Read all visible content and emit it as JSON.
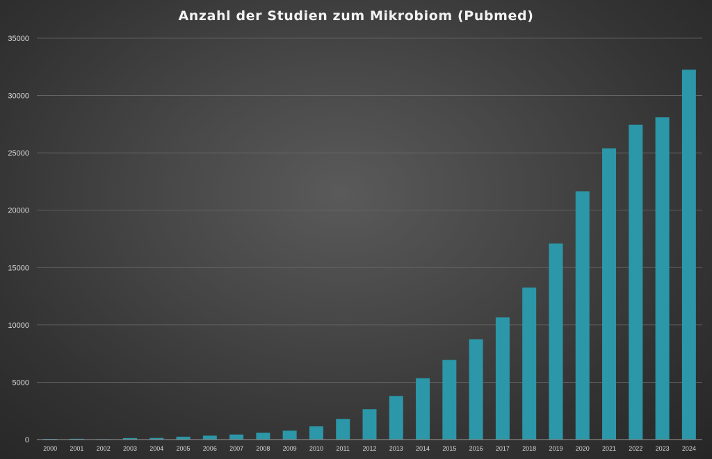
{
  "chart_data": {
    "type": "bar",
    "title": "Anzahl der Studien zum Mikrobiom (Pubmed)",
    "categories": [
      "2000",
      "2001",
      "2002",
      "2003",
      "2004",
      "2005",
      "2006",
      "2007",
      "2008",
      "2009",
      "2010",
      "2011",
      "2012",
      "2013",
      "2014",
      "2015",
      "2016",
      "2017",
      "2018",
      "2019",
      "2020",
      "2021",
      "2022",
      "2023",
      "2024"
    ],
    "values": [
      60,
      70,
      40,
      130,
      140,
      250,
      340,
      440,
      600,
      780,
      1150,
      1800,
      2650,
      3800,
      5350,
      6950,
      8750,
      10650,
      13250,
      17100,
      21650,
      25400,
      27450,
      28100,
      32250
    ],
    "xlabel": "",
    "ylabel": "",
    "ylim": [
      0,
      35000
    ],
    "yticks": [
      0,
      5000,
      10000,
      15000,
      20000,
      25000,
      30000,
      35000
    ],
    "grid": true,
    "legend": "none",
    "colors": {
      "bar": "#2b97a8",
      "text": "#d9d9d9",
      "title": "#f2f2f2"
    }
  }
}
